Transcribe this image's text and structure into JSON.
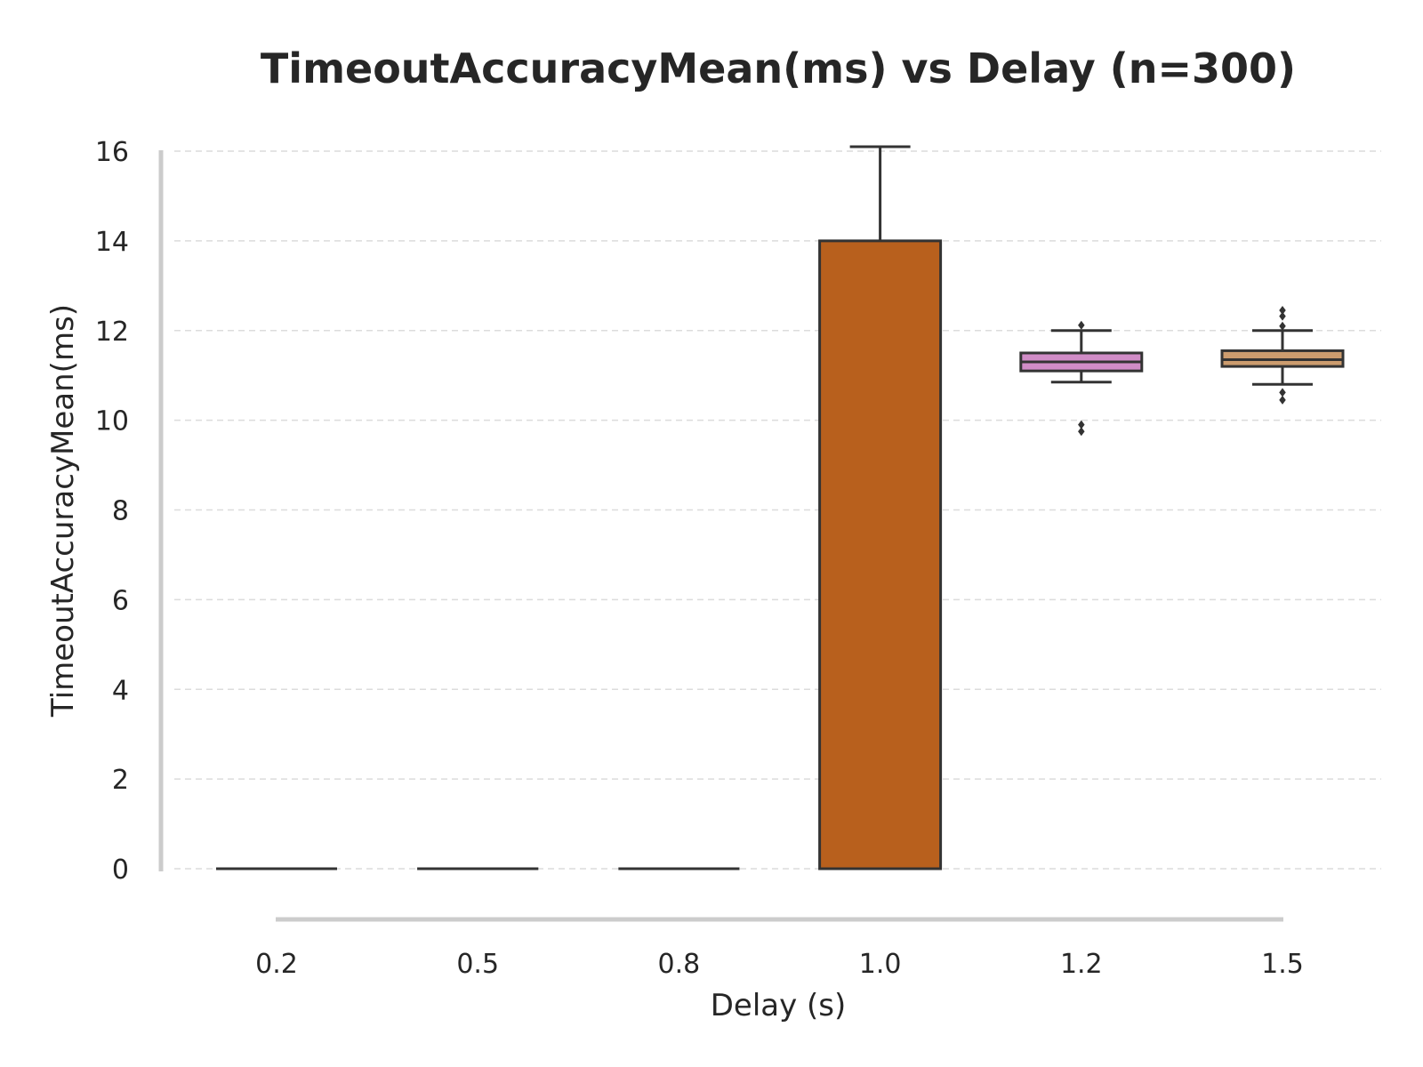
{
  "chart_data": {
    "type": "box",
    "title": "TimeoutAccuracyMean(ms) vs Delay (n=300)",
    "xlabel": "Delay (s)",
    "ylabel": "TimeoutAccuracyMean(ms)",
    "ylim": [
      -0.9,
      16.4
    ],
    "yticks": [
      0,
      2,
      4,
      6,
      8,
      10,
      12,
      14,
      16
    ],
    "grid": "y, dashed",
    "categories": [
      "0.2",
      "0.5",
      "0.8",
      "1.0",
      "1.2",
      "1.5"
    ],
    "colors": [
      "#7b9e55",
      "#dd8452",
      "#b94a3d",
      "#b8601d",
      "#d08cc6",
      "#cc9c6e"
    ],
    "boxes": [
      {
        "category": "0.2",
        "whislo": 0,
        "q1": 0,
        "med": 0,
        "q3": 0,
        "whishi": 0,
        "fliers": []
      },
      {
        "category": "0.5",
        "whislo": 0,
        "q1": 0,
        "med": 0,
        "q3": 0,
        "whishi": 0,
        "fliers": []
      },
      {
        "category": "0.8",
        "whislo": 0,
        "q1": 0,
        "med": 0,
        "q3": 0,
        "whishi": 0,
        "fliers": []
      },
      {
        "category": "1.0",
        "whislo": 0,
        "q1": 0,
        "med": 0,
        "q3": 14.0,
        "whishi": 16.1,
        "fliers": []
      },
      {
        "category": "1.2",
        "whislo": 10.85,
        "q1": 11.1,
        "med": 11.3,
        "q3": 11.5,
        "whishi": 12.0,
        "fliers": [
          9.75,
          9.9,
          12.12
        ]
      },
      {
        "category": "1.5",
        "whislo": 10.8,
        "q1": 11.2,
        "med": 11.35,
        "q3": 11.55,
        "whishi": 12.0,
        "fliers": [
          10.45,
          10.62,
          12.1,
          12.32,
          12.45
        ]
      }
    ]
  }
}
